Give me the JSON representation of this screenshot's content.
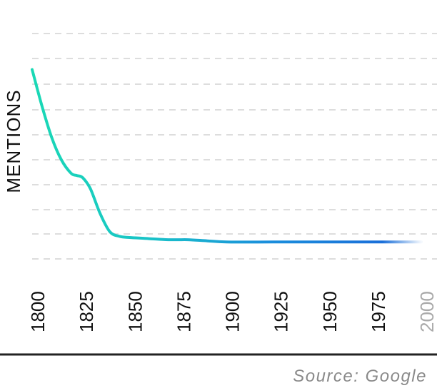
{
  "chart_data": {
    "type": "line",
    "ylabel": "MENTIONS",
    "xlabel": "",
    "x_ticks": [
      "1800",
      "1825",
      "1850",
      "1875",
      "1900",
      "1925",
      "1950",
      "1975",
      "2000"
    ],
    "faded_ticks": [
      "2000"
    ],
    "xlim": [
      1800,
      2000
    ],
    "ylim": [
      0,
      100
    ],
    "grid": true,
    "series": [
      {
        "x": [
          1800,
          1805,
          1810,
          1815,
          1820,
          1823,
          1826,
          1830,
          1835,
          1840,
          1845,
          1850,
          1860,
          1870,
          1880,
          1890,
          1900,
          1925,
          1950,
          1975,
          2000
        ],
        "y": [
          84,
          68,
          54,
          44,
          38,
          37,
          36,
          31,
          20,
          12,
          10,
          9.5,
          9,
          8.5,
          8.5,
          8,
          7.5,
          7.5,
          7.5,
          7.5,
          7.5
        ]
      }
    ],
    "colors": {
      "line_start": "#1ad9b5",
      "line_mid": "#1a9ad9",
      "line_end": "#1a6fd9"
    }
  },
  "footer": {
    "source": "Source: Google"
  }
}
